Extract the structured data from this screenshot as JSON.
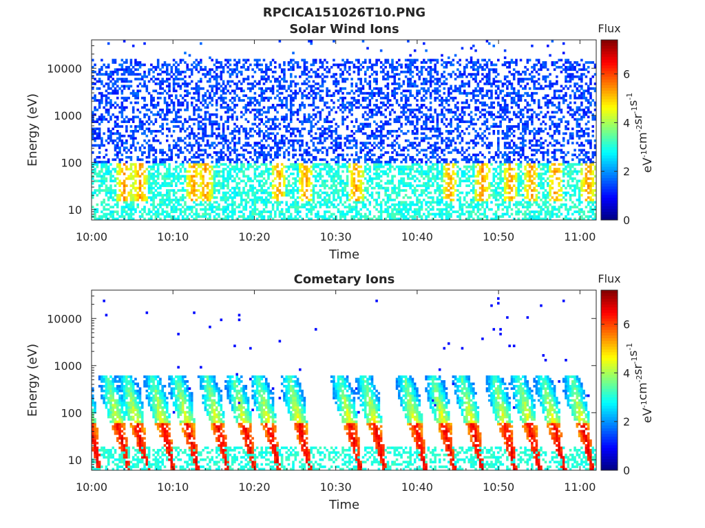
{
  "figure_title": "RPCICA151026T10.PNG",
  "colors": {
    "colormap": [
      "#00008f",
      "#0000ff",
      "#00ffff",
      "#ffff00",
      "#ff0000",
      "#800000"
    ]
  },
  "chart_data": [
    {
      "type": "heatmap",
      "title": "Solar Wind Ions",
      "xlabel": "Time",
      "ylabel": "Energy (eV)",
      "x_ticks": [
        "10:00",
        "10:10",
        "10:20",
        "10:30",
        "10:40",
        "10:50",
        "11:00"
      ],
      "y_ticks": [
        "10",
        "100",
        "1000",
        "10000"
      ],
      "y_scale": "log",
      "ylim": [
        6,
        40000
      ],
      "xlim_minutes": [
        0,
        62
      ],
      "colorbar": {
        "label_title": "Flux",
        "unit_parts": [
          "eV",
          "-1",
          "cm",
          "-2",
          "sr",
          "-1",
          "s",
          "-1"
        ],
        "ticks": [
          "0",
          "2",
          "4",
          "6"
        ],
        "range": [
          0,
          7.4
        ]
      },
      "hotspots_minutes": [
        4,
        6,
        12.5,
        14,
        23,
        26.3,
        32.5,
        44,
        48,
        51.5,
        54,
        57,
        61
      ]
    },
    {
      "type": "heatmap",
      "title": "Cometary Ions",
      "xlabel": "Time",
      "ylabel": "Energy (eV)",
      "x_ticks": [
        "10:00",
        "10:10",
        "10:20",
        "10:30",
        "10:40",
        "10:50",
        "11:00"
      ],
      "y_ticks": [
        "10",
        "100",
        "1000",
        "10000"
      ],
      "y_scale": "log",
      "ylim": [
        6,
        40000
      ],
      "xlim_minutes": [
        0,
        62
      ],
      "colorbar": {
        "label_title": "Flux",
        "unit_parts": [
          "eV",
          "-1",
          "cm",
          "-2",
          "sr",
          "-1",
          "s",
          "-1"
        ],
        "ticks": [
          "0",
          "2",
          "4",
          "6"
        ],
        "range": [
          0,
          7.4
        ]
      },
      "bursts_minutes": [
        0.5,
        4,
        6.3,
        9.5,
        12.5,
        16.2,
        19.5,
        22.5,
        26.3,
        32.5,
        35.5,
        40.5,
        44,
        47.5,
        51.5,
        54.5,
        57.5,
        61
      ]
    }
  ]
}
